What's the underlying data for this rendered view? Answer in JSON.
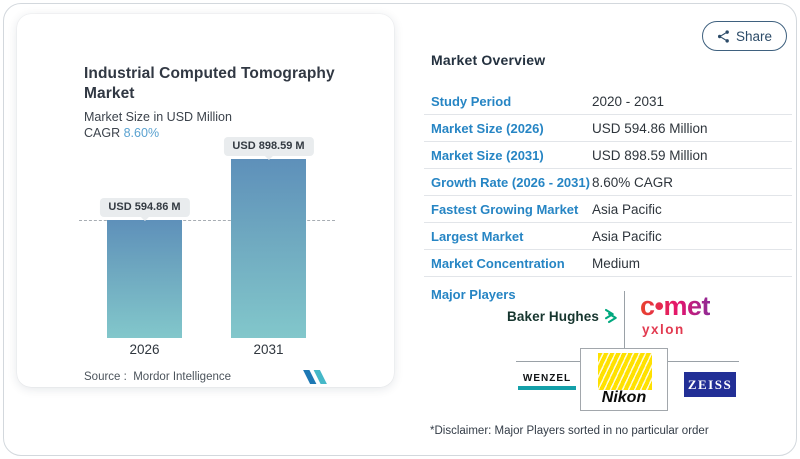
{
  "share": {
    "label": "Share",
    "icon": "share-nodes-icon"
  },
  "chart_card": {
    "title": "Industrial Computed Tomography Market",
    "subtitle": "Market Size in USD Million",
    "cagr_label": "CAGR",
    "cagr_value": "8.60%",
    "source_label": "Source :",
    "source_value": "Mordor Intelligence",
    "logo": "mordor-intelligence-logo"
  },
  "chart_data": {
    "type": "bar",
    "title": "Industrial Computed Tomography Market",
    "subtitle": "Market Size in USD Million",
    "unit": "USD Million",
    "cagr_percent": 8.6,
    "categories": [
      "2026",
      "2031"
    ],
    "values": [
      594.86,
      898.59
    ],
    "bar_labels": [
      "USD 594.86 M",
      "USD 898.59 M"
    ],
    "ylim": [
      0,
      950
    ],
    "reference_line_value": 594.86,
    "grid": false,
    "bar_gradient": [
      "#5e90ba",
      "#82c7cb"
    ]
  },
  "overview": {
    "heading": "Market Overview",
    "rows": [
      {
        "label": "Study Period",
        "value": "2020 - 2031"
      },
      {
        "label": "Market Size (2026)",
        "value": "USD 594.86 Million"
      },
      {
        "label": "Market Size (2031)",
        "value": "USD 898.59 Million"
      },
      {
        "label": "Growth Rate (2026 - 2031)",
        "value": "8.60% CAGR"
      },
      {
        "label": "Fastest Growing Market",
        "value": "Asia Pacific"
      },
      {
        "label": "Largest Market",
        "value": "Asia Pacific"
      },
      {
        "label": "Market Concentration",
        "value": "Medium"
      }
    ],
    "major_players_label": "Major Players",
    "major_players": [
      "Baker Hughes",
      "Comet Yxlon",
      "Wenzel",
      "Nikon",
      "Zeiss"
    ],
    "disclaimer": "*Disclaimer: Major Players sorted in no particular order"
  },
  "logos": {
    "baker_hughes": "Baker Hughes",
    "comet_word": "c•met",
    "yxlon": "yxlon",
    "wenzel": "WENZEL",
    "nikon": "Nikon",
    "zeiss": "ZEISS"
  },
  "colors": {
    "label_blue": "#2685c4",
    "cagr_blue": "#5aa2d0",
    "bar_top": "#5e90ba",
    "bar_bottom": "#82c7cb",
    "share_slate": "#2c4b68",
    "baker_hughes_green": "#00a87e",
    "comet_gradient": [
      "#e8432d",
      "#e3146e",
      "#8e2a96"
    ],
    "yxlon_red": "#e23a50",
    "wenzel_teal": "#14a0a9",
    "nikon_yellow": "#ffe100",
    "zeiss_blue": "#222f96"
  }
}
